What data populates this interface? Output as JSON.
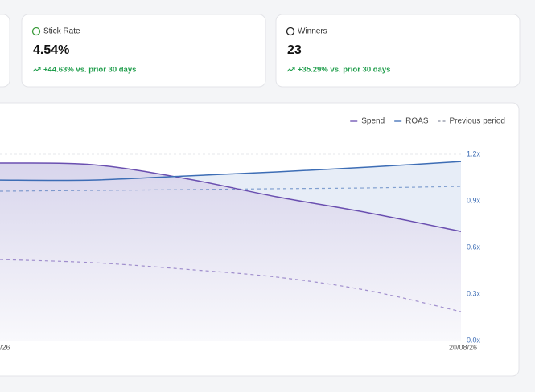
{
  "cards": [
    {
      "title": "Stick Rate",
      "value": "4.54%",
      "change": "+44.63% vs. prior 30 days",
      "icon_color": "#3a9b3a"
    },
    {
      "title": "Winners",
      "value": "23",
      "change": "+35.29% vs. prior 30 days",
      "icon_color": "#222222"
    }
  ],
  "chart_data": {
    "type": "line",
    "categories": [
      "/26",
      null,
      null,
      null,
      null,
      "20/08/26"
    ],
    "series": [
      {
        "name": "Spend",
        "color": "#6a4fb0",
        "values": [
          1.143,
          1.133,
          1.045,
          0.926,
          0.822,
          0.703
        ]
      },
      {
        "name": "ROAS",
        "color": "#3d6db5",
        "values": [
          1.034,
          1.034,
          1.06,
          1.086,
          1.117,
          1.153
        ]
      }
    ],
    "previous_period": {
      "name": "Previous period",
      "spend": [
        0.522,
        0.502,
        0.46,
        0.409,
        0.321,
        0.186
      ],
      "roas": [
        0.962,
        0.967,
        0.972,
        0.978,
        0.983,
        0.993
      ]
    },
    "ylim": [
      0,
      1.2
    ],
    "yticks": [
      {
        "value": 0,
        "label": "0.0x"
      },
      {
        "value": 0.3,
        "label": "0.3x"
      },
      {
        "value": 0.6,
        "label": "0.6x"
      },
      {
        "value": 0.9,
        "label": "0.9x"
      },
      {
        "value": 1.2,
        "label": "1.2x"
      }
    ],
    "grid": true
  }
}
